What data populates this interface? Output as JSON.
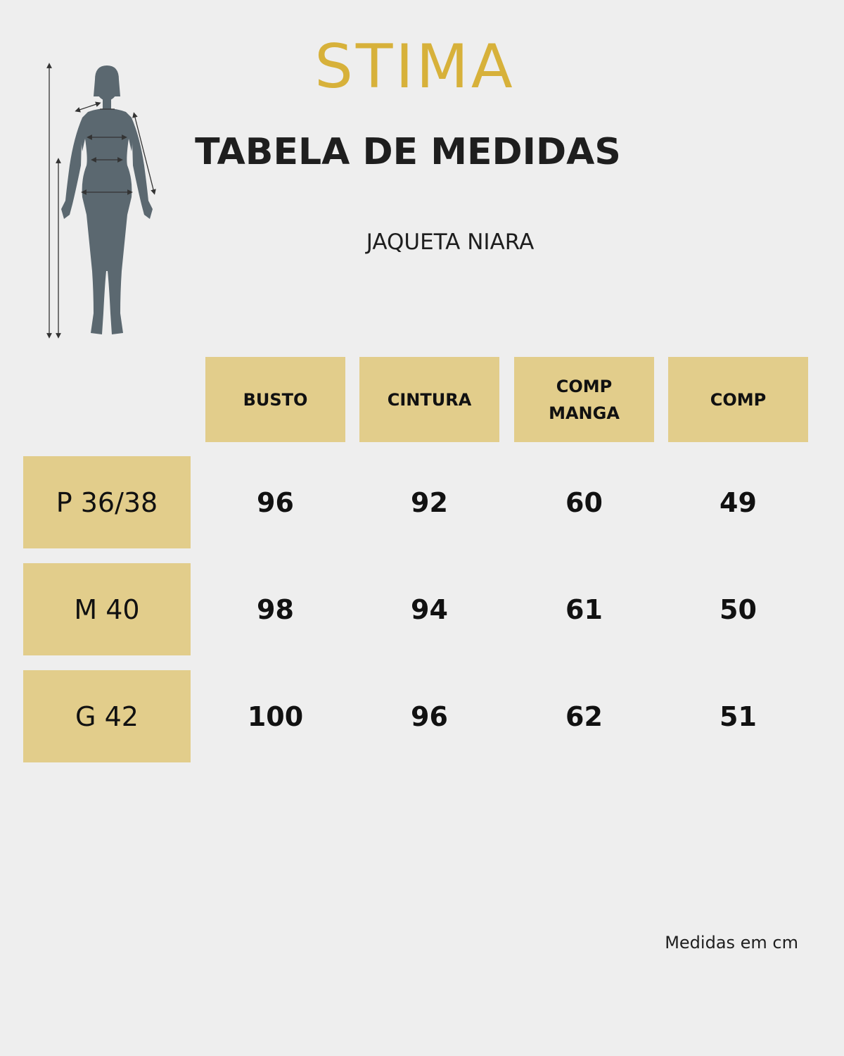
{
  "brand": {
    "logo": "STIMA",
    "accent": "#d7b13a",
    "cell_color": "#e2cd8b",
    "figure_color": "#5b6870"
  },
  "page": {
    "title": "TABELA DE MEDIDAS",
    "product": "JAQUETA NIARA",
    "note": "Medidas em cm"
  },
  "table": {
    "columns": [
      "BUSTO",
      "CINTURA",
      "COMP\nMANGA",
      "COMP"
    ],
    "rows": [
      {
        "size": "P 36/38",
        "values": [
          "96",
          "92",
          "60",
          "49"
        ]
      },
      {
        "size": "M 40",
        "values": [
          "98",
          "94",
          "61",
          "50"
        ]
      },
      {
        "size": "G 42",
        "values": [
          "100",
          "96",
          "62",
          "51"
        ]
      }
    ]
  }
}
